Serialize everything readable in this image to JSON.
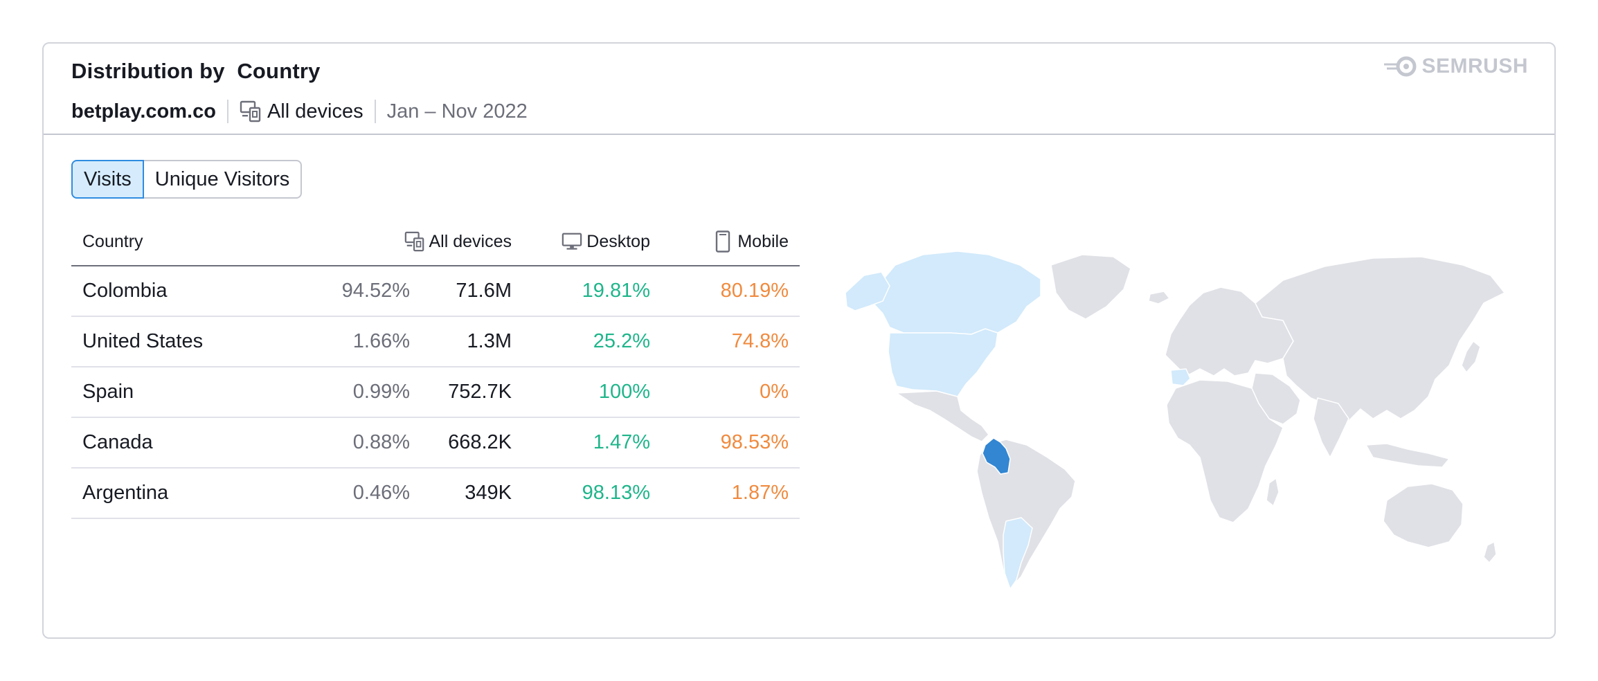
{
  "header": {
    "title": "Distribution by  Country",
    "domain": "betplay.com.co",
    "devices": "All devices",
    "date_range": "Jan – Nov 2022",
    "brand": "SEMRUSH"
  },
  "tabs": [
    {
      "label": "Visits",
      "active": true
    },
    {
      "label": "Unique Visitors",
      "active": false
    }
  ],
  "table": {
    "columns": {
      "country": "Country",
      "all_devices": "All devices",
      "desktop": "Desktop",
      "mobile": "Mobile"
    },
    "rows": [
      {
        "country": "Colombia",
        "share": "94.52%",
        "visits": "71.6M",
        "desktop": "19.81%",
        "mobile": "80.19%"
      },
      {
        "country": "United States",
        "share": "1.66%",
        "visits": "1.3M",
        "desktop": "25.2%",
        "mobile": "74.8%"
      },
      {
        "country": "Spain",
        "share": "0.99%",
        "visits": "752.7K",
        "desktop": "100%",
        "mobile": "0%"
      },
      {
        "country": "Canada",
        "share": "0.88%",
        "visits": "668.2K",
        "desktop": "1.47%",
        "mobile": "98.53%"
      },
      {
        "country": "Argentina",
        "share": "0.46%",
        "visits": "349K",
        "desktop": "98.13%",
        "mobile": "1.87%"
      }
    ]
  },
  "colors": {
    "accent": "#2e8ce0",
    "desktop": "#1fb58a",
    "mobile": "#f08a3e",
    "map_land": "#e0e1e6",
    "map_low": "#d2eafb",
    "map_high": "#3286d2"
  },
  "icons": {
    "devices": "devices-icon",
    "desktop": "desktop-icon",
    "mobile": "mobile-icon",
    "brand": "semrush-logo"
  }
}
